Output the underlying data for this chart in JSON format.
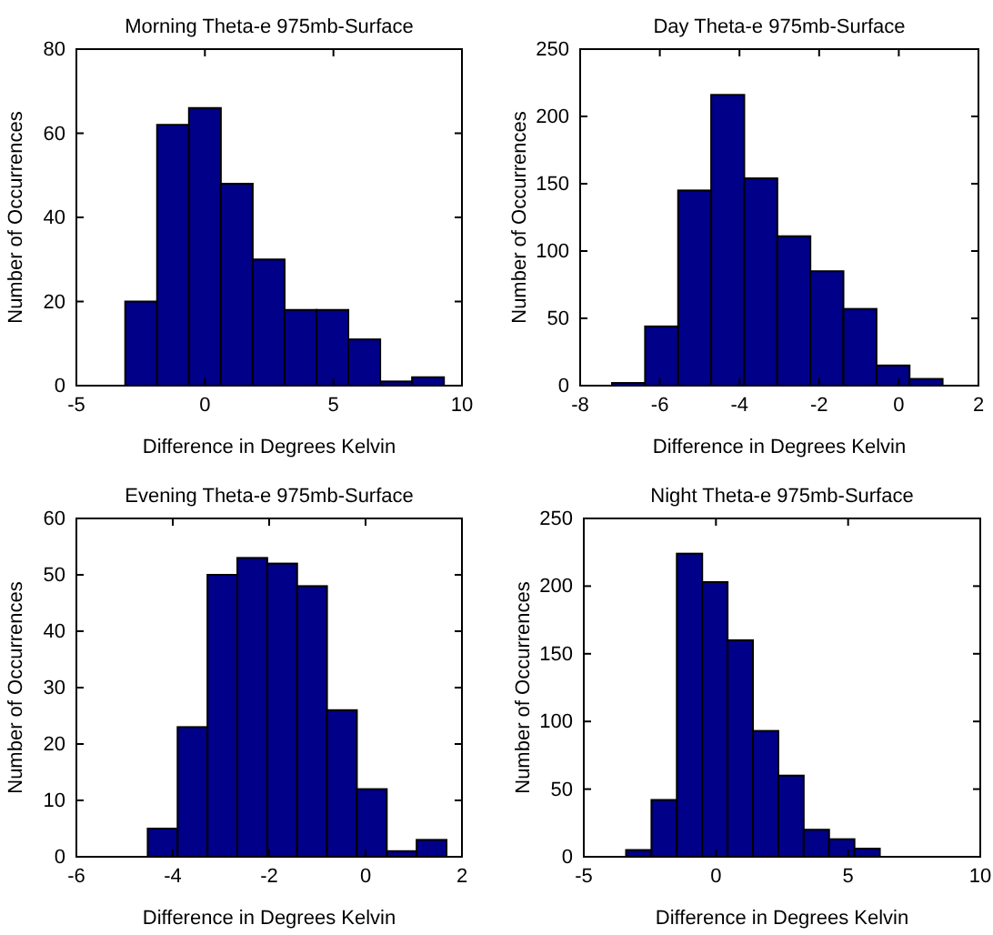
{
  "chart_data": [
    {
      "type": "histogram",
      "title": "Morning Theta-e 975mb-Surface",
      "xlabel": "Difference in Degrees Kelvin",
      "ylabel": "Number of Occurrences",
      "color": "#000088",
      "bins": [
        -3.1,
        -1.86,
        -0.62,
        0.62,
        1.86,
        3.1,
        4.34,
        5.58,
        6.82,
        8.06,
        9.3
      ],
      "values": [
        20,
        62,
        66,
        48,
        30,
        18,
        18,
        11,
        1,
        2
      ],
      "xlim": [
        -5,
        10
      ],
      "xticks": [
        -5,
        0,
        5,
        10
      ],
      "ylim": [
        0,
        80
      ],
      "yticks": [
        0,
        20,
        40,
        60,
        80
      ],
      "grid": false
    },
    {
      "type": "histogram",
      "title": "Day Theta-e 975mb-Surface",
      "xlabel": "Difference in Degrees Kelvin",
      "ylabel": "Number of Occurrences",
      "color": "#000088",
      "bins": [
        -7.2,
        -6.37,
        -5.54,
        -4.71,
        -3.88,
        -3.05,
        -2.22,
        -1.39,
        -0.56,
        0.27,
        1.1
      ],
      "values": [
        2,
        44,
        145,
        216,
        154,
        111,
        85,
        57,
        15,
        5
      ],
      "xlim": [
        -8,
        2
      ],
      "xticks": [
        -8,
        -6,
        -4,
        -2,
        0,
        2
      ],
      "ylim": [
        0,
        250
      ],
      "yticks": [
        0,
        50,
        100,
        150,
        200,
        250
      ],
      "grid": false
    },
    {
      "type": "histogram",
      "title": "Evening Theta-e 975mb-Surface",
      "xlabel": "Difference in Degrees Kelvin",
      "ylabel": "Number of Occurrences",
      "color": "#000088",
      "bins": [
        -4.52,
        -3.9,
        -3.28,
        -2.66,
        -2.04,
        -1.42,
        -0.8,
        -0.18,
        0.44,
        1.06,
        1.68
      ],
      "values": [
        5,
        23,
        50,
        53,
        52,
        48,
        26,
        12,
        1,
        3
      ],
      "xlim": [
        -6,
        2
      ],
      "xticks": [
        -6,
        -4,
        -2,
        0,
        2
      ],
      "ylim": [
        0,
        60
      ],
      "yticks": [
        0,
        10,
        20,
        30,
        40,
        50,
        60
      ],
      "grid": false
    },
    {
      "type": "histogram",
      "title": "Night Theta-e 975mb-Surface",
      "xlabel": "Difference in Degrees Kelvin",
      "ylabel": "Number of Occurrences",
      "color": "#000088",
      "bins": [
        -3.4,
        -2.44,
        -1.48,
        -0.52,
        0.44,
        1.4,
        2.36,
        3.32,
        4.28,
        5.24,
        6.2
      ],
      "values": [
        5,
        42,
        224,
        203,
        160,
        93,
        60,
        20,
        13,
        6
      ],
      "xlim": [
        -5,
        10
      ],
      "xticks": [
        -5,
        0,
        5,
        10
      ],
      "ylim": [
        0,
        250
      ],
      "yticks": [
        0,
        50,
        100,
        150,
        200,
        250
      ],
      "grid": false
    }
  ]
}
